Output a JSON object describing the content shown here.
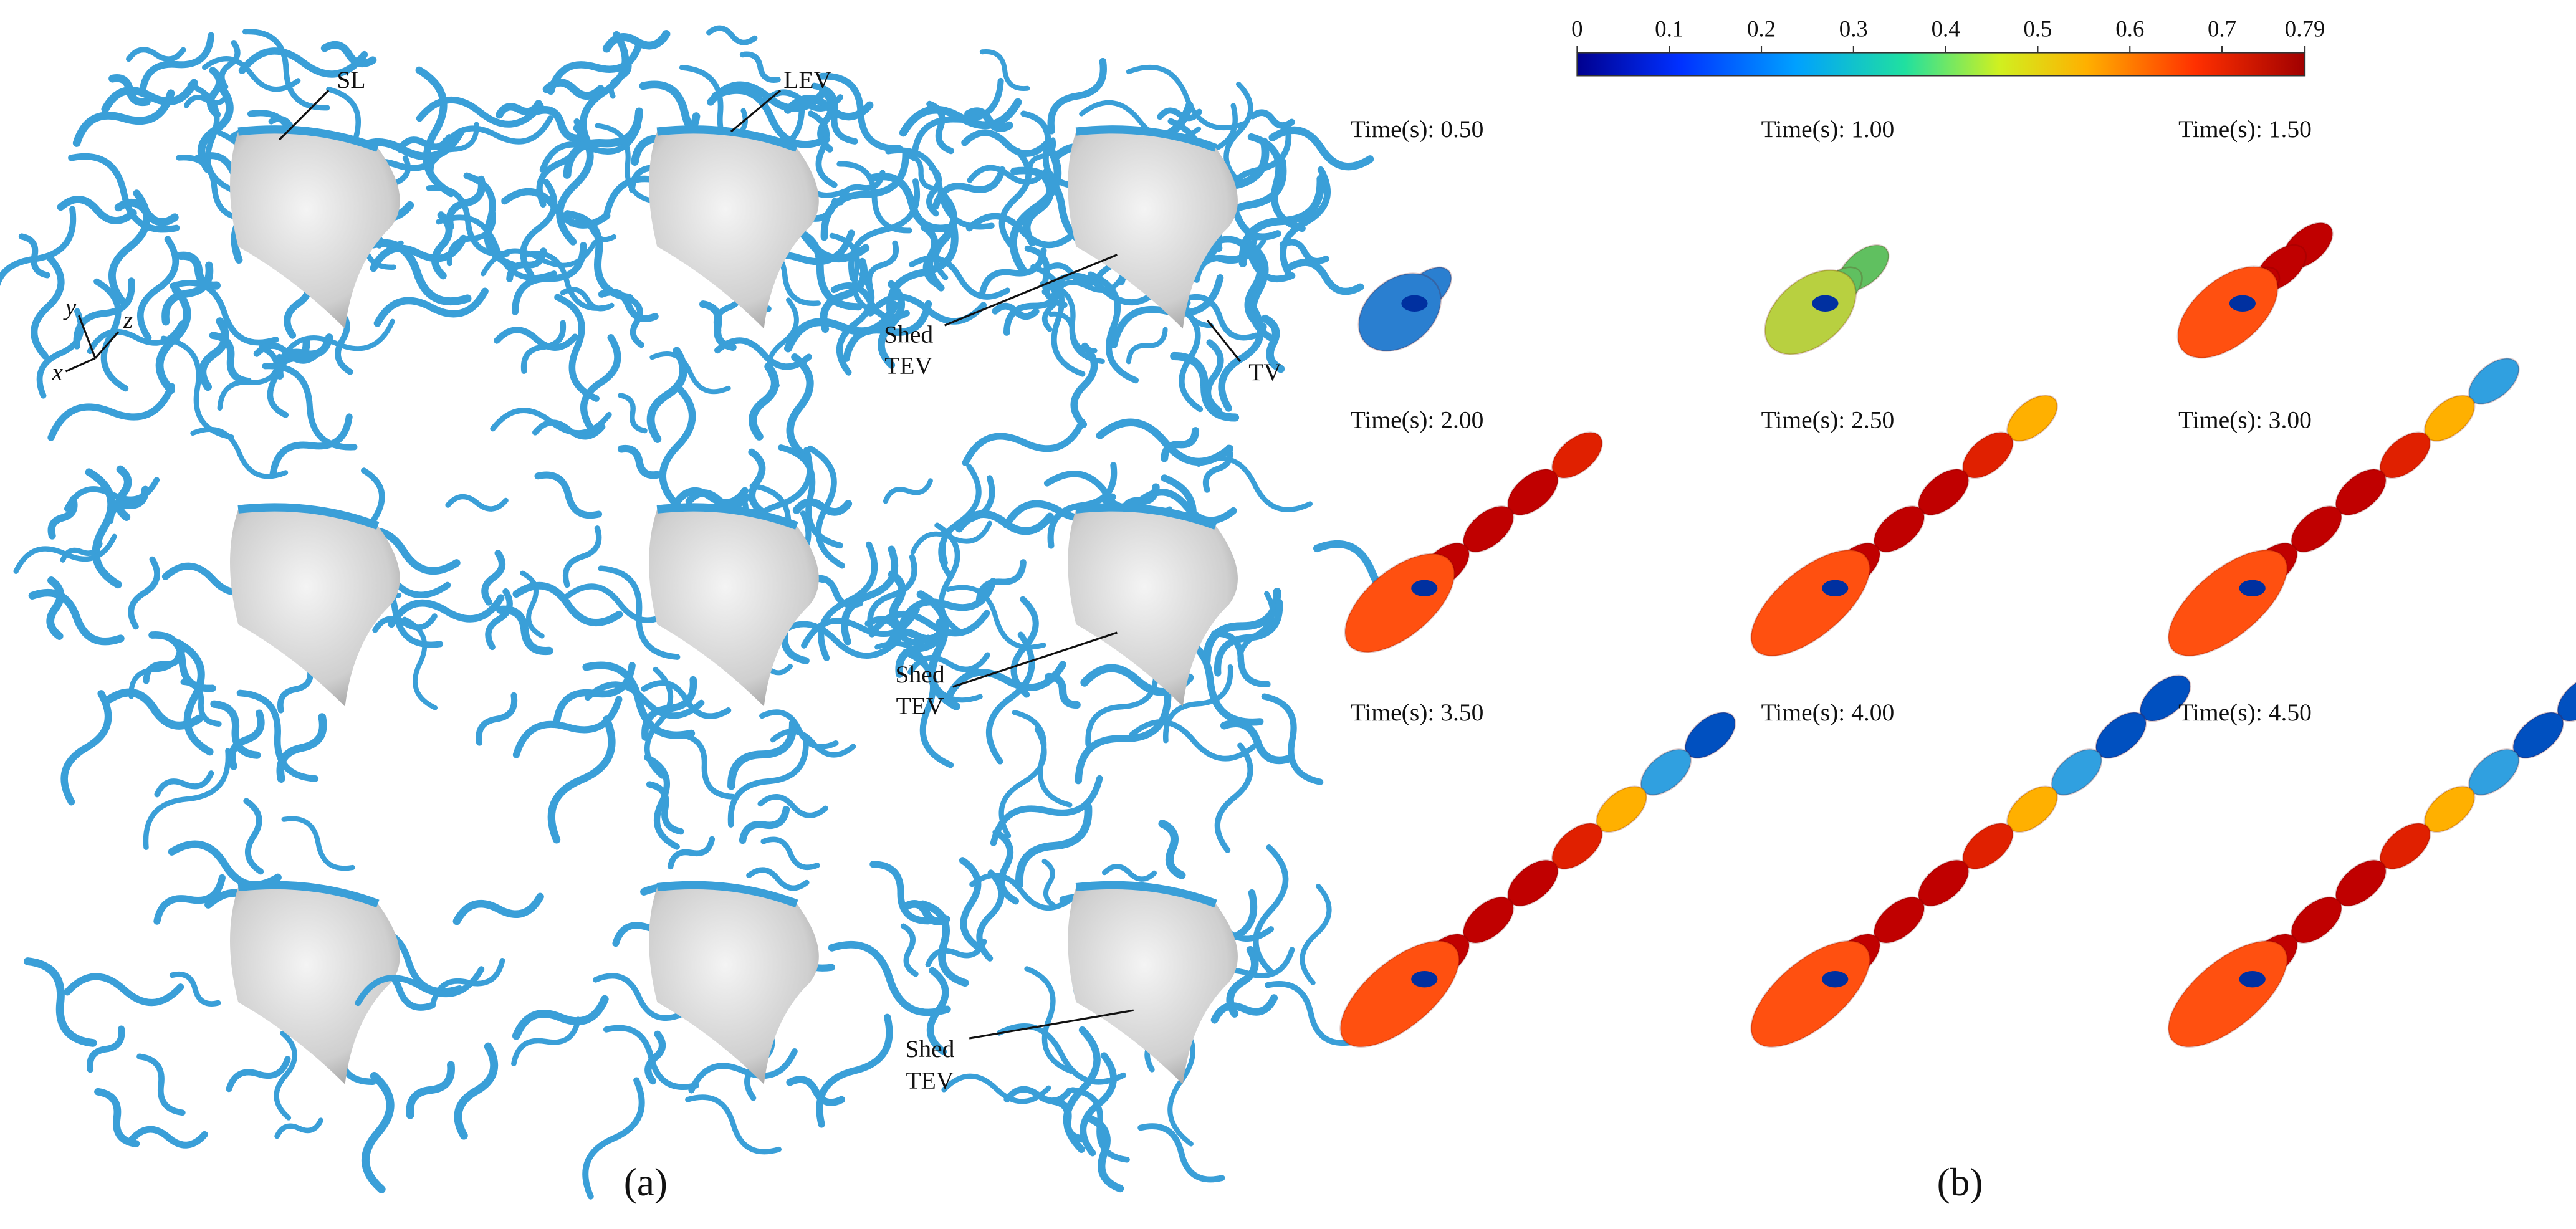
{
  "panel_a": {
    "label": "(a)",
    "annotations": [
      {
        "lines": [
          "SL"
        ]
      },
      {
        "lines": [
          "LEV"
        ]
      },
      {
        "lines": [
          "Shed",
          "TEV"
        ]
      },
      {
        "lines": [
          "TV"
        ]
      },
      {
        "lines": [
          "Shed",
          "TEV"
        ]
      },
      {
        "lines": [
          "Shed",
          "TEV"
        ]
      }
    ],
    "axes": {
      "x": "x",
      "y": "y",
      "z": "z"
    }
  },
  "panel_b": {
    "label": "(b)",
    "colorbar": {
      "lim": [
        0,
        0.79
      ],
      "ticks": [
        0,
        0.1,
        0.2,
        0.3,
        0.4,
        0.5,
        0.6,
        0.7,
        0.79
      ]
    },
    "time_labels": [
      "Time(s): 0.50",
      "Time(s): 1.00",
      "Time(s): 1.50",
      "Time(s): 2.00",
      "Time(s): 2.50",
      "Time(s): 3.00",
      "Time(s): 3.50",
      "Time(s): 4.00",
      "Time(s): 4.50"
    ]
  }
}
